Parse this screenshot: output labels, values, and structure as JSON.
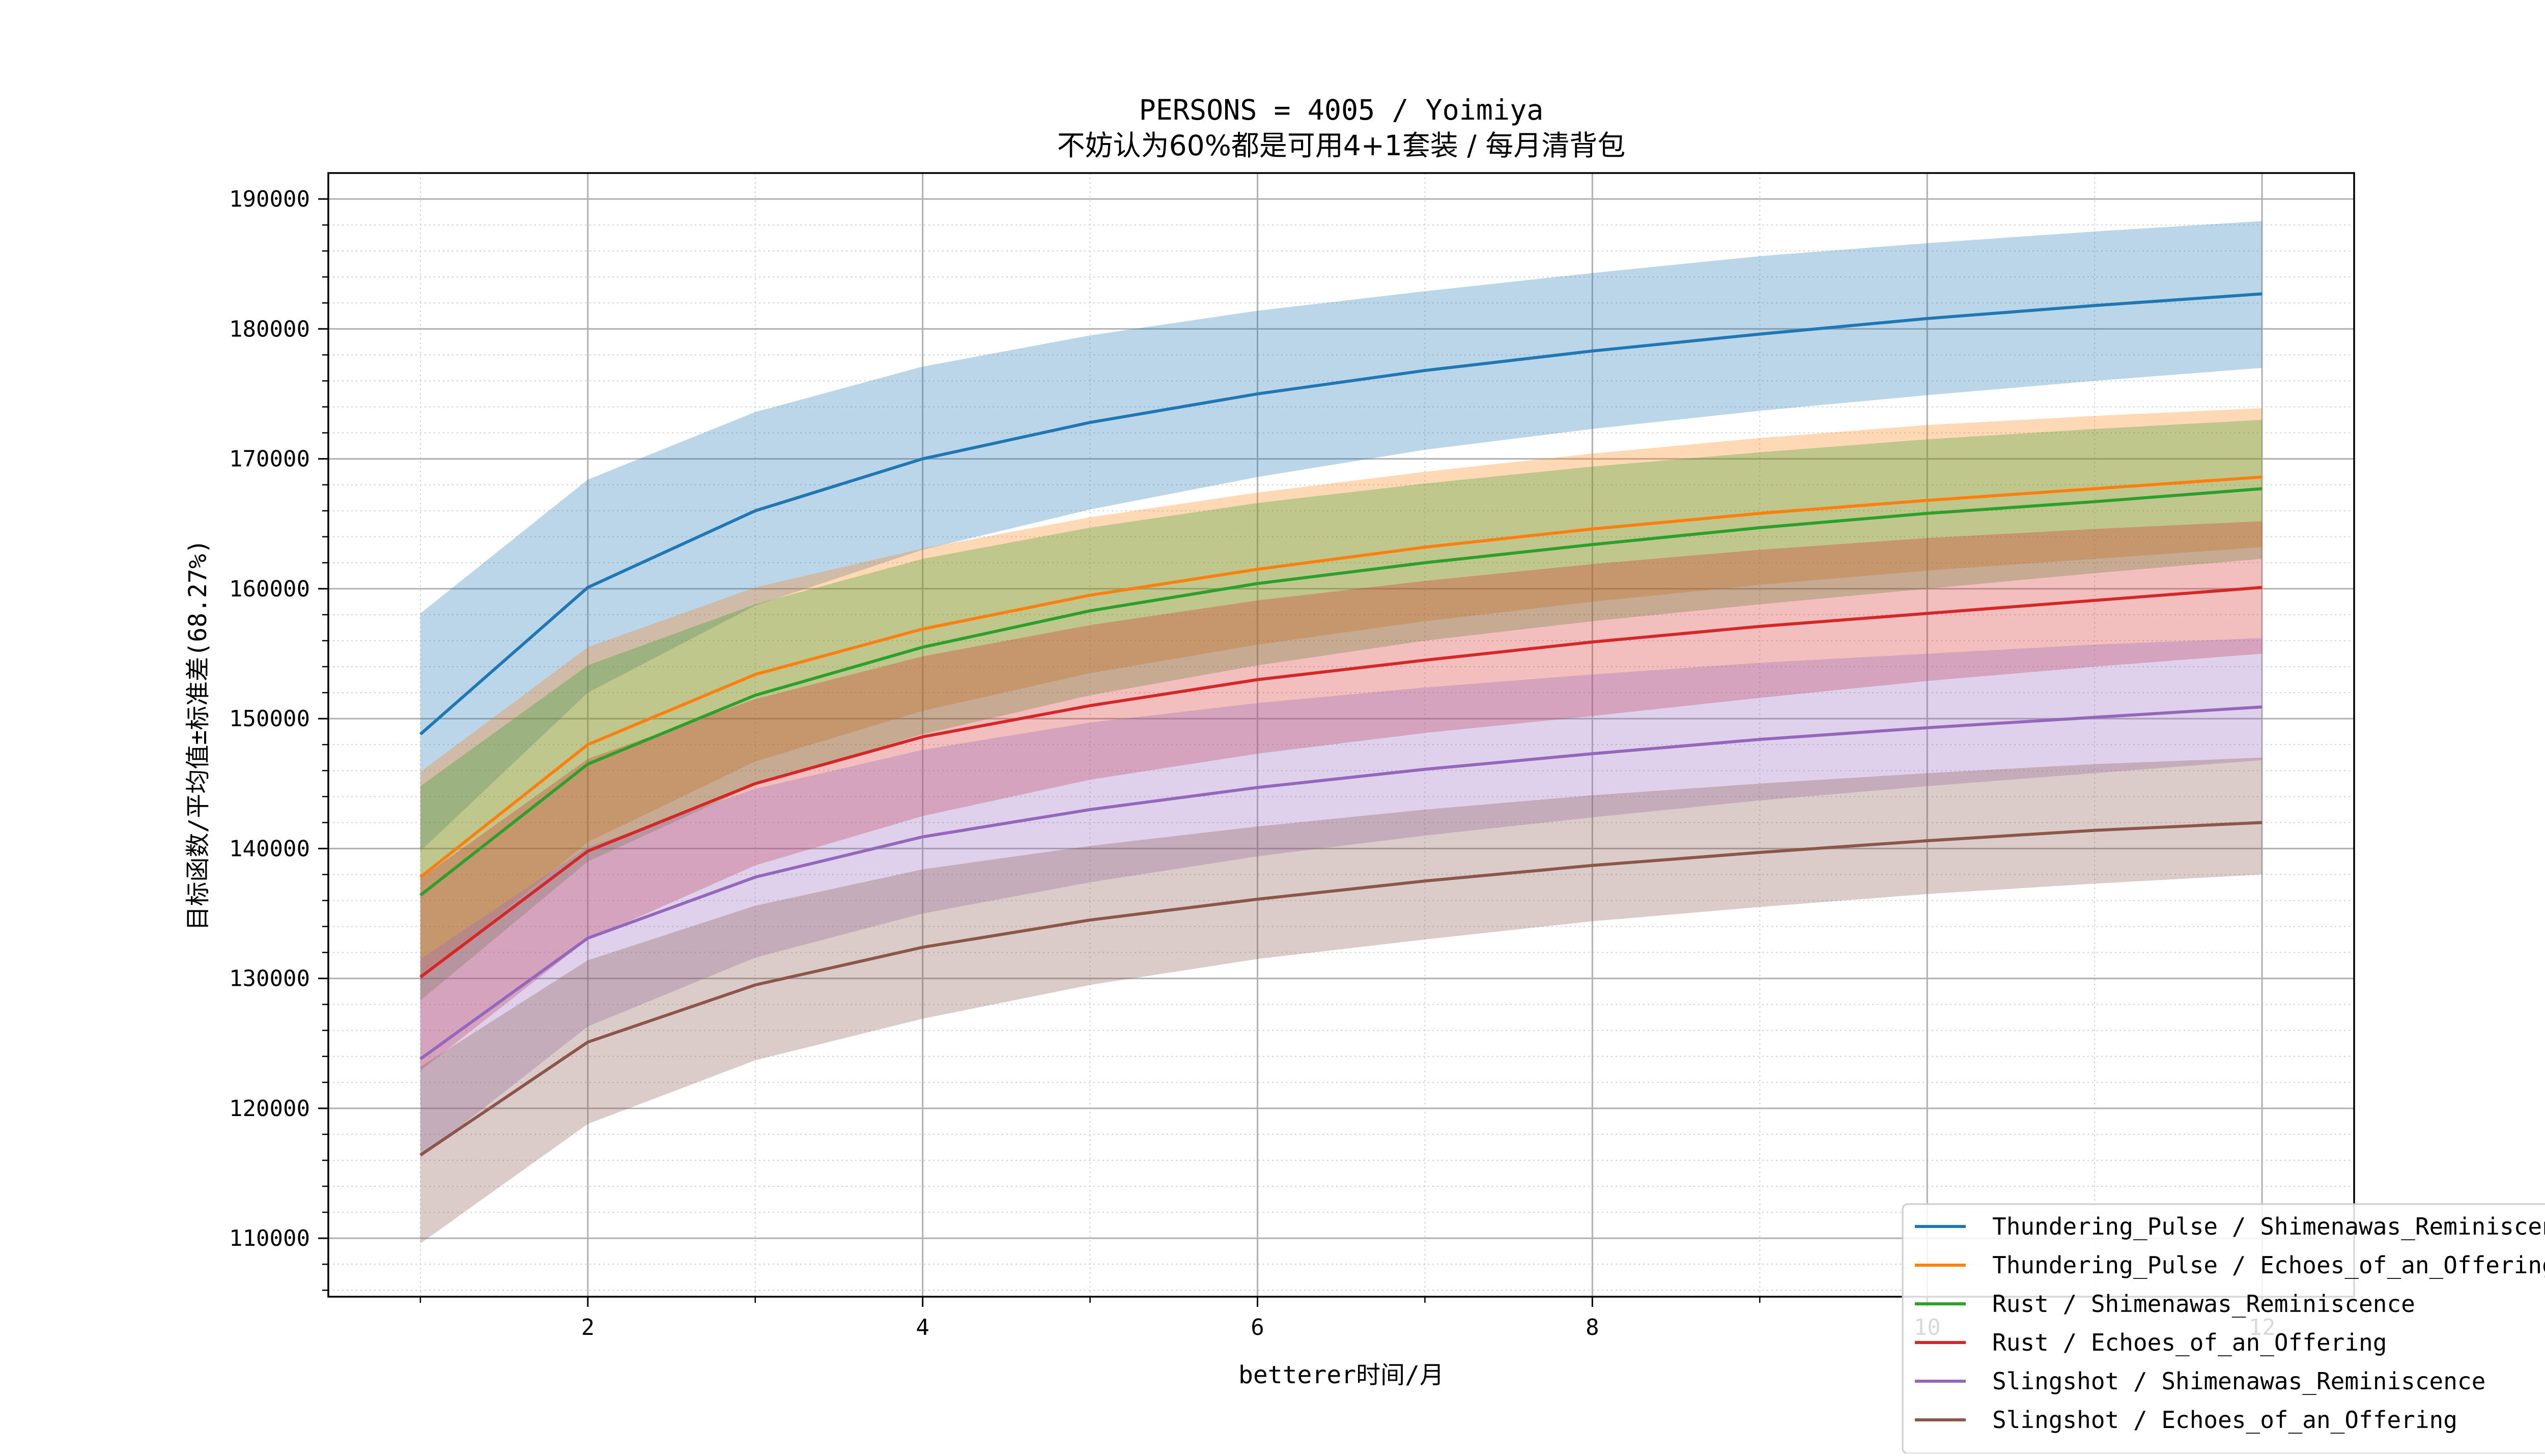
{
  "chart_data": {
    "type": "line",
    "title": "PERSONS = 4005 / Yoimiya",
    "subtitle": "不妨认为60%都是可用4+1套装 / 每月清背包",
    "xlabel": "betterer时间/月",
    "ylabel": "目标函数/平均值±标准差(68.27%)",
    "xlim": [
      0.45,
      12.55
    ],
    "ylim": [
      105500,
      192000
    ],
    "x_ticks": [
      2,
      4,
      6,
      8,
      10,
      12
    ],
    "y_ticks": [
      110000,
      120000,
      130000,
      140000,
      150000,
      160000,
      170000,
      180000,
      190000
    ],
    "grid": "major solid, minor dotted",
    "legend_position": "bottom-right",
    "x": [
      1,
      2,
      3,
      4,
      5,
      6,
      7,
      8,
      9,
      10,
      11,
      12
    ],
    "series": [
      {
        "name": "Thundering_Pulse / Shimenawas_Reminiscence",
        "color": "#1f77b4",
        "mean": [
          148800,
          160100,
          166000,
          170000,
          172800,
          175000,
          176800,
          178300,
          179600,
          180800,
          181800,
          182700
        ],
        "upper": [
          158100,
          168400,
          173600,
          177100,
          179500,
          181400,
          182900,
          184300,
          185600,
          186600,
          187500,
          188300
        ],
        "lower": [
          139800,
          152000,
          158700,
          163000,
          166100,
          168600,
          170700,
          172300,
          173700,
          174900,
          176000,
          177000
        ]
      },
      {
        "name": "Thundering_Pulse / Echoes_of_an_Offering",
        "color": "#ff7f0e",
        "mean": [
          137800,
          148000,
          153400,
          156900,
          159500,
          161500,
          163200,
          164600,
          165800,
          166800,
          167700,
          168600
        ],
        "upper": [
          145900,
          155500,
          160100,
          163100,
          165500,
          167400,
          169000,
          170400,
          171600,
          172600,
          173300,
          173900
        ],
        "lower": [
          129900,
          140500,
          146700,
          150600,
          153500,
          155700,
          157500,
          159000,
          160300,
          161400,
          162300,
          163200
        ]
      },
      {
        "name": "Rust / Shimenawas_Reminiscence",
        "color": "#2ca02c",
        "mean": [
          136400,
          146500,
          151800,
          155500,
          158300,
          160400,
          162000,
          163400,
          164700,
          165800,
          166700,
          167700
        ],
        "upper": [
          144800,
          154100,
          158800,
          162300,
          164700,
          166600,
          168100,
          169400,
          170500,
          171500,
          172300,
          173000
        ],
        "lower": [
          128300,
          139000,
          144900,
          148800,
          151800,
          154100,
          156000,
          157500,
          158800,
          160000,
          161200,
          162300
        ]
      },
      {
        "name": "Rust / Echoes_of_an_Offering",
        "color": "#d62728",
        "mean": [
          130100,
          139800,
          145000,
          148600,
          151000,
          153000,
          154500,
          155900,
          157100,
          158100,
          159100,
          160100
        ],
        "upper": [
          137700,
          146900,
          151500,
          154800,
          157200,
          159100,
          160600,
          161900,
          163000,
          163900,
          164600,
          165200
        ],
        "lower": [
          122900,
          133000,
          138700,
          142500,
          145300,
          147300,
          148900,
          150200,
          151600,
          152900,
          154000,
          155000
        ]
      },
      {
        "name": "Slingshot / Shimenawas_Reminiscence",
        "color": "#9467bd",
        "mean": [
          123800,
          133100,
          137800,
          140900,
          143000,
          144700,
          146100,
          147300,
          148400,
          149300,
          150100,
          150900
        ],
        "upper": [
          131500,
          140100,
          144600,
          147600,
          149700,
          151200,
          152400,
          153400,
          154300,
          155000,
          155700,
          156200
        ],
        "lower": [
          116200,
          126300,
          131600,
          135000,
          137400,
          139400,
          141000,
          142400,
          143700,
          144800,
          145800,
          146800
        ]
      },
      {
        "name": "Slingshot / Echoes_of_an_Offering",
        "color": "#8c564b",
        "mean": [
          116400,
          125100,
          129500,
          132400,
          134500,
          136100,
          137500,
          138700,
          139700,
          140600,
          141400,
          142000
        ],
        "upper": [
          123200,
          131400,
          135600,
          138400,
          140200,
          141700,
          143000,
          144100,
          145000,
          145800,
          146500,
          147000
        ],
        "lower": [
          109600,
          118800,
          123700,
          126900,
          129500,
          131500,
          133000,
          134400,
          135500,
          136500,
          137300,
          138000
        ]
      }
    ]
  }
}
